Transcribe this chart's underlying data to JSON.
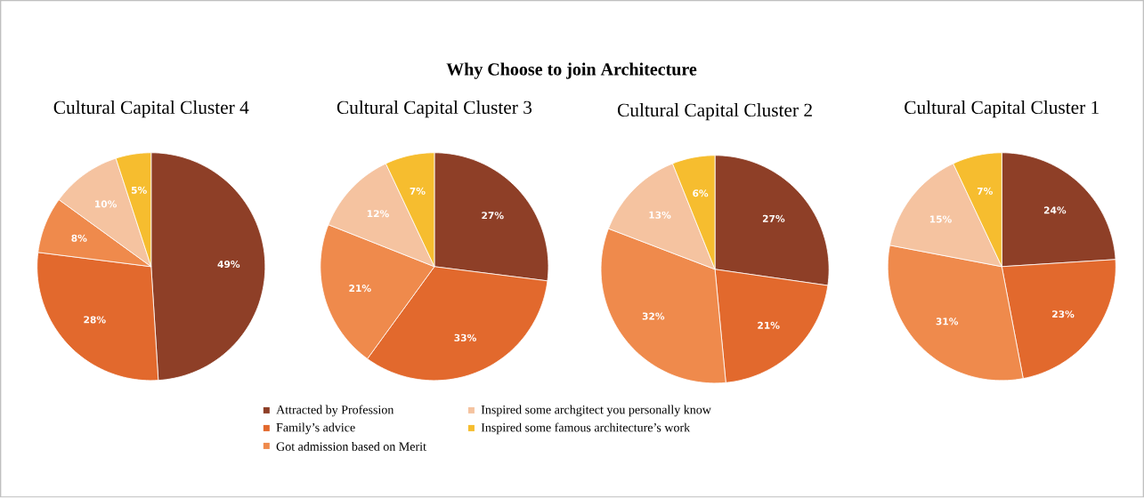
{
  "chart_data": [
    {
      "type": "pie",
      "title": "Cultural Capital Cluster 4",
      "annotations": [
        "Why Choose to join Architecture"
      ],
      "legend": "bottom",
      "categories": [
        "Attracted by Profession",
        "Family’s advice",
        "Got admission based on Merit",
        "Inspired some archgitect you personally know",
        "Inspired some famous architecture’s work"
      ],
      "values": [
        49,
        28,
        8,
        10,
        5
      ],
      "value_labels": [
        "49%",
        "28%",
        "8%",
        "10%",
        "5%"
      ],
      "colors": [
        "#8e3f27",
        "#e2692d",
        "#ef8a4c",
        "#f5c3a0",
        "#f6bd2f"
      ]
    },
    {
      "type": "pie",
      "title": "Cultural Capital Cluster 3",
      "values": [
        27,
        33,
        21,
        12,
        7
      ],
      "value_labels": [
        "27%",
        "33%",
        "21%",
        "12%",
        "7%"
      ],
      "colors": [
        "#8e3f27",
        "#e2692d",
        "#ef8a4c",
        "#f5c3a0",
        "#f6bd2f"
      ]
    },
    {
      "type": "pie",
      "title": "Cultural Capital Cluster 2",
      "values": [
        27,
        21,
        32,
        13,
        6
      ],
      "value_labels": [
        "27%",
        "21%",
        "32%",
        "13%",
        "6%"
      ],
      "colors": [
        "#8e3f27",
        "#e2692d",
        "#ef8a4c",
        "#f5c3a0",
        "#f6bd2f"
      ]
    },
    {
      "type": "pie",
      "title": "Cultural Capital Cluster 1",
      "values": [
        24,
        23,
        31,
        15,
        7
      ],
      "value_labels": [
        "24%",
        "23%",
        "31%",
        "15%",
        "7%"
      ],
      "colors": [
        "#8e3f27",
        "#e2692d",
        "#ef8a4c",
        "#f5c3a0",
        "#f6bd2f"
      ]
    }
  ]
}
